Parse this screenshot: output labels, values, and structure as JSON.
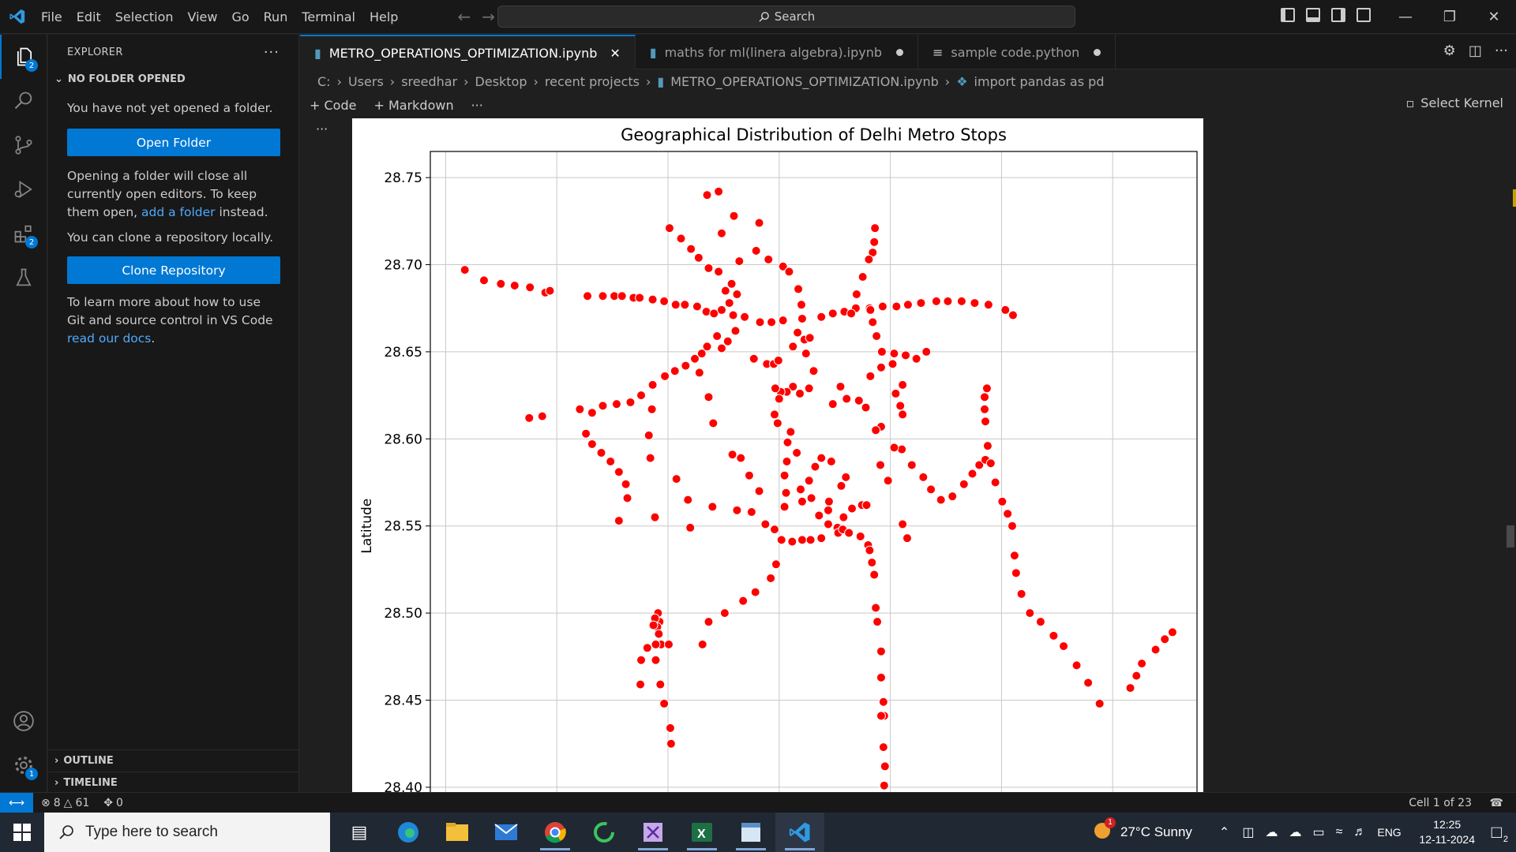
{
  "titlebar": {
    "menu": [
      "File",
      "Edit",
      "Selection",
      "View",
      "Go",
      "Run",
      "Terminal",
      "Help"
    ],
    "search_label": "Search"
  },
  "activitybar": {
    "explorer_badge": "2",
    "extensions_badge": "2",
    "settings_badge": "1"
  },
  "sidebar": {
    "header": "EXPLORER",
    "section": "NO FOLDER OPENED",
    "msg_no_folder": "You have not yet opened a folder.",
    "open_folder_button": "Open Folder",
    "msg_opening_1": "Opening a folder will close all currently open editors. To keep them open, ",
    "msg_opening_link": "add a folder",
    "msg_opening_2": " instead.",
    "msg_clone": "You can clone a repository locally.",
    "clone_button": "Clone Repository",
    "msg_learn_1": "To learn more about how to use Git and source control in VS Code ",
    "msg_learn_link": "read our docs",
    "msg_learn_2": ".",
    "outline": "OUTLINE",
    "timeline": "TIMELINE"
  },
  "tabs": [
    {
      "label": "METRO_OPERATIONS_OPTIMIZATION.ipynb",
      "active": true
    },
    {
      "label": "maths for ml(linera algebra).ipynb",
      "active": false
    },
    {
      "label": "sample code.python",
      "active": false
    }
  ],
  "breadcrumb": [
    "C:",
    "Users",
    "sreedhar",
    "Desktop",
    "recent projects",
    "METRO_OPERATIONS_OPTIMIZATION.ipynb",
    "import pandas as pd"
  ],
  "notebook_toolbar": {
    "code": "Code",
    "markdown": "Markdown",
    "kernel": "Select Kernel"
  },
  "statusbar": {
    "errors": "8",
    "warnings": "61",
    "ports": "0",
    "cell": "Cell 1 of 23"
  },
  "taskbar": {
    "search_placeholder": "Type here to search",
    "weather": "27°C  Sunny",
    "weather_badge": "1",
    "language": "ENG",
    "time": "12:25",
    "date": "12-11-2024",
    "notif_count": "2"
  },
  "chart_data": {
    "type": "scatter",
    "title": "Geographical Distribution of Delhi Metro Stops",
    "xlabel": "",
    "ylabel": "Latitude",
    "ylim": [
      28.39,
      28.765
    ],
    "yticks": [
      "28.75",
      "28.70",
      "28.65",
      "28.60",
      "28.55",
      "28.50",
      "28.45",
      "28.40"
    ],
    "ytick_values": [
      28.75,
      28.7,
      28.65,
      28.6,
      28.55,
      28.5,
      28.45,
      28.4
    ],
    "xlim": [
      0,
      100
    ],
    "xgrid": [
      2,
      16.5,
      31,
      45.5,
      60,
      74.5,
      89
    ],
    "grid": true,
    "color": "#ff0000",
    "points": [
      [
        4.5,
        28.697
      ],
      [
        7,
        28.691
      ],
      [
        9.2,
        28.689
      ],
      [
        11,
        28.688
      ],
      [
        13,
        28.687
      ],
      [
        15,
        28.684
      ],
      [
        15.6,
        28.685
      ],
      [
        20.5,
        28.682
      ],
      [
        22.5,
        28.682
      ],
      [
        24,
        28.682
      ],
      [
        25,
        28.682
      ],
      [
        26.5,
        28.681
      ],
      [
        27.3,
        28.681
      ],
      [
        29,
        28.68
      ],
      [
        30.5,
        28.679
      ],
      [
        32,
        28.677
      ],
      [
        33.2,
        28.677
      ],
      [
        34.8,
        28.676
      ],
      [
        36,
        28.673
      ],
      [
        37,
        28.672
      ],
      [
        38,
        28.674
      ],
      [
        39.5,
        28.671
      ],
      [
        41,
        28.67
      ],
      [
        43,
        28.667
      ],
      [
        44.5,
        28.667
      ],
      [
        46,
        28.668
      ],
      [
        48.5,
        28.669
      ],
      [
        51,
        28.67
      ],
      [
        52.5,
        28.672
      ],
      [
        54,
        28.673
      ],
      [
        55.5,
        28.675
      ],
      [
        57.3,
        28.675
      ],
      [
        59,
        28.676
      ],
      [
        60.8,
        28.676
      ],
      [
        62.3,
        28.677
      ],
      [
        64,
        28.678
      ],
      [
        66,
        28.679
      ],
      [
        67.5,
        28.679
      ],
      [
        69.3,
        28.679
      ],
      [
        71,
        28.678
      ],
      [
        72.8,
        28.677
      ],
      [
        75,
        28.674
      ],
      [
        76,
        28.671
      ],
      [
        31.2,
        28.721
      ],
      [
        32.7,
        28.715
      ],
      [
        34,
        28.709
      ],
      [
        35,
        28.704
      ],
      [
        36.3,
        28.698
      ],
      [
        37.6,
        28.696
      ],
      [
        38.5,
        28.685
      ],
      [
        39,
        28.678
      ],
      [
        39.5,
        28.671
      ],
      [
        39.8,
        28.662
      ],
      [
        38.8,
        28.656
      ],
      [
        38,
        28.652
      ],
      [
        37.4,
        28.659
      ],
      [
        36.1,
        28.653
      ],
      [
        35.4,
        28.649
      ],
      [
        34.5,
        28.646
      ],
      [
        33.3,
        28.642
      ],
      [
        31.9,
        28.639
      ],
      [
        30.6,
        28.636
      ],
      [
        29,
        28.631
      ],
      [
        27.5,
        28.625
      ],
      [
        26.1,
        28.621
      ],
      [
        24.3,
        28.62
      ],
      [
        22.5,
        28.619
      ],
      [
        21.1,
        28.615
      ],
      [
        19.5,
        28.617
      ],
      [
        14.6,
        28.613
      ],
      [
        12.9,
        28.612
      ],
      [
        36.1,
        28.74
      ],
      [
        37.6,
        28.742
      ],
      [
        38,
        28.718
      ],
      [
        39.6,
        28.728
      ],
      [
        40.3,
        28.702
      ],
      [
        42.5,
        28.708
      ],
      [
        42.9,
        28.724
      ],
      [
        39.3,
        28.689
      ],
      [
        40,
        28.683
      ],
      [
        44.1,
        28.703
      ],
      [
        46,
        28.699
      ],
      [
        46.8,
        28.696
      ],
      [
        48,
        28.686
      ],
      [
        48.4,
        28.677
      ],
      [
        47.9,
        28.661
      ],
      [
        47.3,
        28.653
      ],
      [
        48.8,
        28.657
      ],
      [
        49.5,
        28.658
      ],
      [
        49,
        28.649
      ],
      [
        50,
        28.639
      ],
      [
        49.4,
        28.629
      ],
      [
        48.2,
        28.626
      ],
      [
        47.3,
        28.63
      ],
      [
        46.5,
        28.627
      ],
      [
        45.7,
        28.627
      ],
      [
        45,
        28.629
      ],
      [
        45.5,
        28.623
      ],
      [
        44.9,
        28.614
      ],
      [
        45.3,
        28.609
      ],
      [
        47,
        28.604
      ],
      [
        42.2,
        28.646
      ],
      [
        43.9,
        28.643
      ],
      [
        44.8,
        28.643
      ],
      [
        45.4,
        28.645
      ],
      [
        35.1,
        28.638
      ],
      [
        36.3,
        28.624
      ],
      [
        36.9,
        28.609
      ],
      [
        58,
        28.721
      ],
      [
        57.9,
        28.713
      ],
      [
        57.7,
        28.707
      ],
      [
        57.2,
        28.703
      ],
      [
        56.4,
        28.693
      ],
      [
        55.6,
        28.683
      ],
      [
        54.9,
        28.672
      ],
      [
        57.4,
        28.674
      ],
      [
        57.7,
        28.667
      ],
      [
        58.2,
        28.659
      ],
      [
        58.9,
        28.65
      ],
      [
        60.5,
        28.649
      ],
      [
        62,
        28.648
      ],
      [
        63.4,
        28.646
      ],
      [
        64.7,
        28.65
      ],
      [
        58.8,
        28.641
      ],
      [
        57.4,
        28.636
      ],
      [
        60.3,
        28.643
      ],
      [
        61.6,
        28.631
      ],
      [
        60.7,
        28.626
      ],
      [
        61.3,
        28.619
      ],
      [
        61.6,
        28.614
      ],
      [
        58.8,
        28.607
      ],
      [
        58.1,
        28.605
      ],
      [
        55.9,
        28.622
      ],
      [
        54.3,
        28.623
      ],
      [
        52.5,
        28.62
      ],
      [
        53.5,
        28.63
      ],
      [
        56.8,
        28.618
      ],
      [
        20.3,
        28.603
      ],
      [
        21.1,
        28.597
      ],
      [
        22.3,
        28.592
      ],
      [
        23.5,
        28.587
      ],
      [
        24.6,
        28.581
      ],
      [
        25.5,
        28.574
      ],
      [
        25.7,
        28.566
      ],
      [
        24.6,
        28.553
      ],
      [
        28.5,
        28.602
      ],
      [
        28.7,
        28.589
      ],
      [
        28.9,
        28.617
      ],
      [
        29.3,
        28.555
      ],
      [
        32.1,
        28.577
      ],
      [
        33.6,
        28.565
      ],
      [
        33.9,
        28.549
      ],
      [
        36.8,
        28.561
      ],
      [
        39.4,
        28.591
      ],
      [
        40,
        28.559
      ],
      [
        40.5,
        28.589
      ],
      [
        41.6,
        28.579
      ],
      [
        41.9,
        28.558
      ],
      [
        42.9,
        28.57
      ],
      [
        43.7,
        28.551
      ],
      [
        44.9,
        28.548
      ],
      [
        46.2,
        28.579
      ],
      [
        46.4,
        28.569
      ],
      [
        46.2,
        28.561
      ],
      [
        46.5,
        28.587
      ],
      [
        46.6,
        28.598
      ],
      [
        47.8,
        28.592
      ],
      [
        48.3,
        28.571
      ],
      [
        49.4,
        28.576
      ],
      [
        48.5,
        28.564
      ],
      [
        49.7,
        28.566
      ],
      [
        51,
        28.589
      ],
      [
        50.2,
        28.584
      ],
      [
        52,
        28.564
      ],
      [
        51.9,
        28.559
      ],
      [
        52.3,
        28.587
      ],
      [
        53.6,
        28.573
      ],
      [
        54.2,
        28.578
      ],
      [
        50.7,
        28.556
      ],
      [
        51.9,
        28.551
      ],
      [
        53.1,
        28.549
      ],
      [
        55,
        28.56
      ],
      [
        56.3,
        28.562
      ],
      [
        56.9,
        28.562
      ],
      [
        53.9,
        28.555
      ],
      [
        53.2,
        28.546
      ],
      [
        53.8,
        28.548
      ],
      [
        54.6,
        28.546
      ],
      [
        56.1,
        28.544
      ],
      [
        57.1,
        28.539
      ],
      [
        45.8,
        28.542
      ],
      [
        47.2,
        28.541
      ],
      [
        48.5,
        28.542
      ],
      [
        49.6,
        28.542
      ],
      [
        51,
        28.543
      ],
      [
        58.7,
        28.585
      ],
      [
        59.7,
        28.576
      ],
      [
        61.5,
        28.594
      ],
      [
        62.8,
        28.585
      ],
      [
        64.3,
        28.578
      ],
      [
        65.3,
        28.571
      ],
      [
        66.6,
        28.565
      ],
      [
        68.1,
        28.567
      ],
      [
        69.6,
        28.574
      ],
      [
        70.7,
        28.58
      ],
      [
        71.6,
        28.585
      ],
      [
        72.4,
        28.588
      ],
      [
        72.7,
        28.596
      ],
      [
        72.4,
        28.61
      ],
      [
        72.3,
        28.617
      ],
      [
        72.3,
        28.624
      ],
      [
        72.6,
        28.629
      ],
      [
        60.5,
        28.595
      ],
      [
        61.6,
        28.551
      ],
      [
        62.2,
        28.543
      ],
      [
        57.3,
        28.536
      ],
      [
        57.6,
        28.529
      ],
      [
        57.9,
        28.522
      ],
      [
        58.1,
        28.503
      ],
      [
        58.3,
        28.495
      ],
      [
        58.8,
        28.478
      ],
      [
        58.8,
        28.463
      ],
      [
        59.1,
        28.449
      ],
      [
        59.2,
        28.441
      ],
      [
        58.8,
        28.441
      ],
      [
        59.1,
        28.423
      ],
      [
        59.3,
        28.412
      ],
      [
        59.2,
        28.401
      ],
      [
        45.1,
        28.528
      ],
      [
        44.4,
        28.52
      ],
      [
        42.4,
        28.512
      ],
      [
        40.8,
        28.507
      ],
      [
        38.4,
        28.5
      ],
      [
        36.3,
        28.495
      ],
      [
        35.5,
        28.482
      ],
      [
        29.7,
        28.5
      ],
      [
        29.9,
        28.495
      ],
      [
        29.3,
        28.497
      ],
      [
        29.6,
        28.492
      ],
      [
        29.1,
        28.493
      ],
      [
        29.8,
        28.488
      ],
      [
        30.1,
        28.482
      ],
      [
        29.4,
        28.482
      ],
      [
        28.3,
        28.48
      ],
      [
        27.5,
        28.473
      ],
      [
        29.4,
        28.473
      ],
      [
        31.1,
        28.482
      ],
      [
        27.4,
        28.459
      ],
      [
        30,
        28.459
      ],
      [
        30.5,
        28.448
      ],
      [
        31.3,
        28.434
      ],
      [
        31.4,
        28.425
      ],
      [
        73.1,
        28.586
      ],
      [
        73.7,
        28.575
      ],
      [
        74.6,
        28.564
      ],
      [
        75.3,
        28.557
      ],
      [
        75.9,
        28.55
      ],
      [
        76.2,
        28.533
      ],
      [
        76.4,
        28.523
      ],
      [
        77.1,
        28.511
      ],
      [
        78.2,
        28.5
      ],
      [
        79.6,
        28.495
      ],
      [
        81.3,
        28.487
      ],
      [
        82.6,
        28.481
      ],
      [
        84.3,
        28.47
      ],
      [
        85.8,
        28.46
      ],
      [
        87.3,
        28.448
      ],
      [
        91.3,
        28.457
      ],
      [
        92.1,
        28.464
      ],
      [
        92.8,
        28.471
      ],
      [
        94.6,
        28.479
      ],
      [
        95.8,
        28.485
      ],
      [
        96.8,
        28.489
      ]
    ]
  }
}
